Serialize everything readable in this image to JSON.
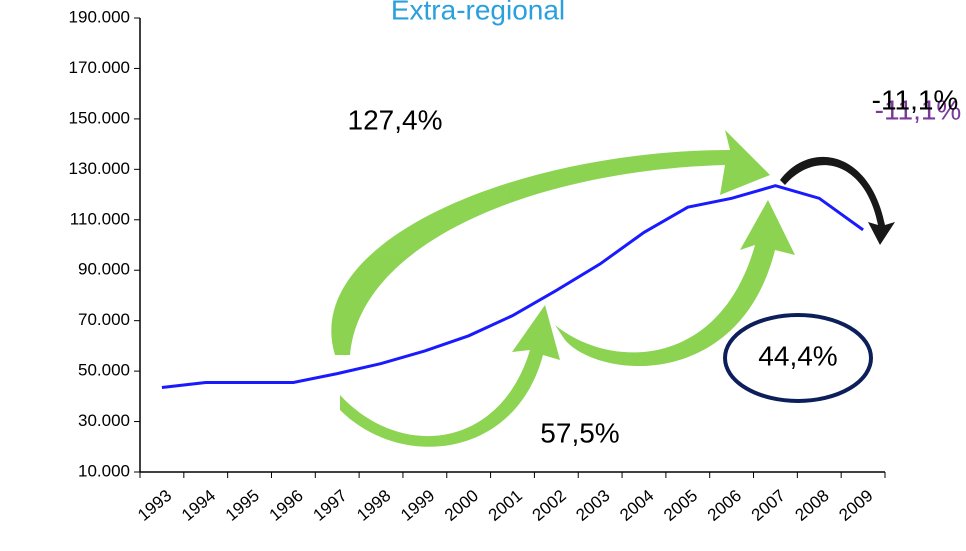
{
  "chart_data": {
    "type": "line",
    "title": "Extra-regional",
    "categories": [
      "1993",
      "1994",
      "1995",
      "1996",
      "1997",
      "1998",
      "1999",
      "2000",
      "2001",
      "2002",
      "2003",
      "2004",
      "2005",
      "2006",
      "2007",
      "2008",
      "2009"
    ],
    "series": [
      {
        "name": "Extra-regional",
        "color": "#1a1aff",
        "values": [
          43500,
          45500,
          45500,
          45500,
          49000,
          53000,
          58000,
          64000,
          72000,
          82000,
          92500,
          105000,
          115000,
          118500,
          123500,
          118500,
          106000
        ]
      }
    ],
    "ylim": [
      10000,
      190000
    ],
    "yticks": [
      {
        "value": 10000,
        "label": "10.000"
      },
      {
        "value": 30000,
        "label": "30.000"
      },
      {
        "value": 50000,
        "label": "50.000"
      },
      {
        "value": 70000,
        "label": "70.000"
      },
      {
        "value": 90000,
        "label": "90.000"
      },
      {
        "value": 110000,
        "label": "110.000"
      },
      {
        "value": 130000,
        "label": "130.000"
      },
      {
        "value": 150000,
        "label": "150.000"
      },
      {
        "value": 170000,
        "label": "170.000"
      },
      {
        "value": 190000,
        "label": "190.000"
      }
    ],
    "grid": false,
    "annotations": [
      "127,4%",
      "57,5%",
      "44,4%",
      "-11,1%"
    ]
  }
}
